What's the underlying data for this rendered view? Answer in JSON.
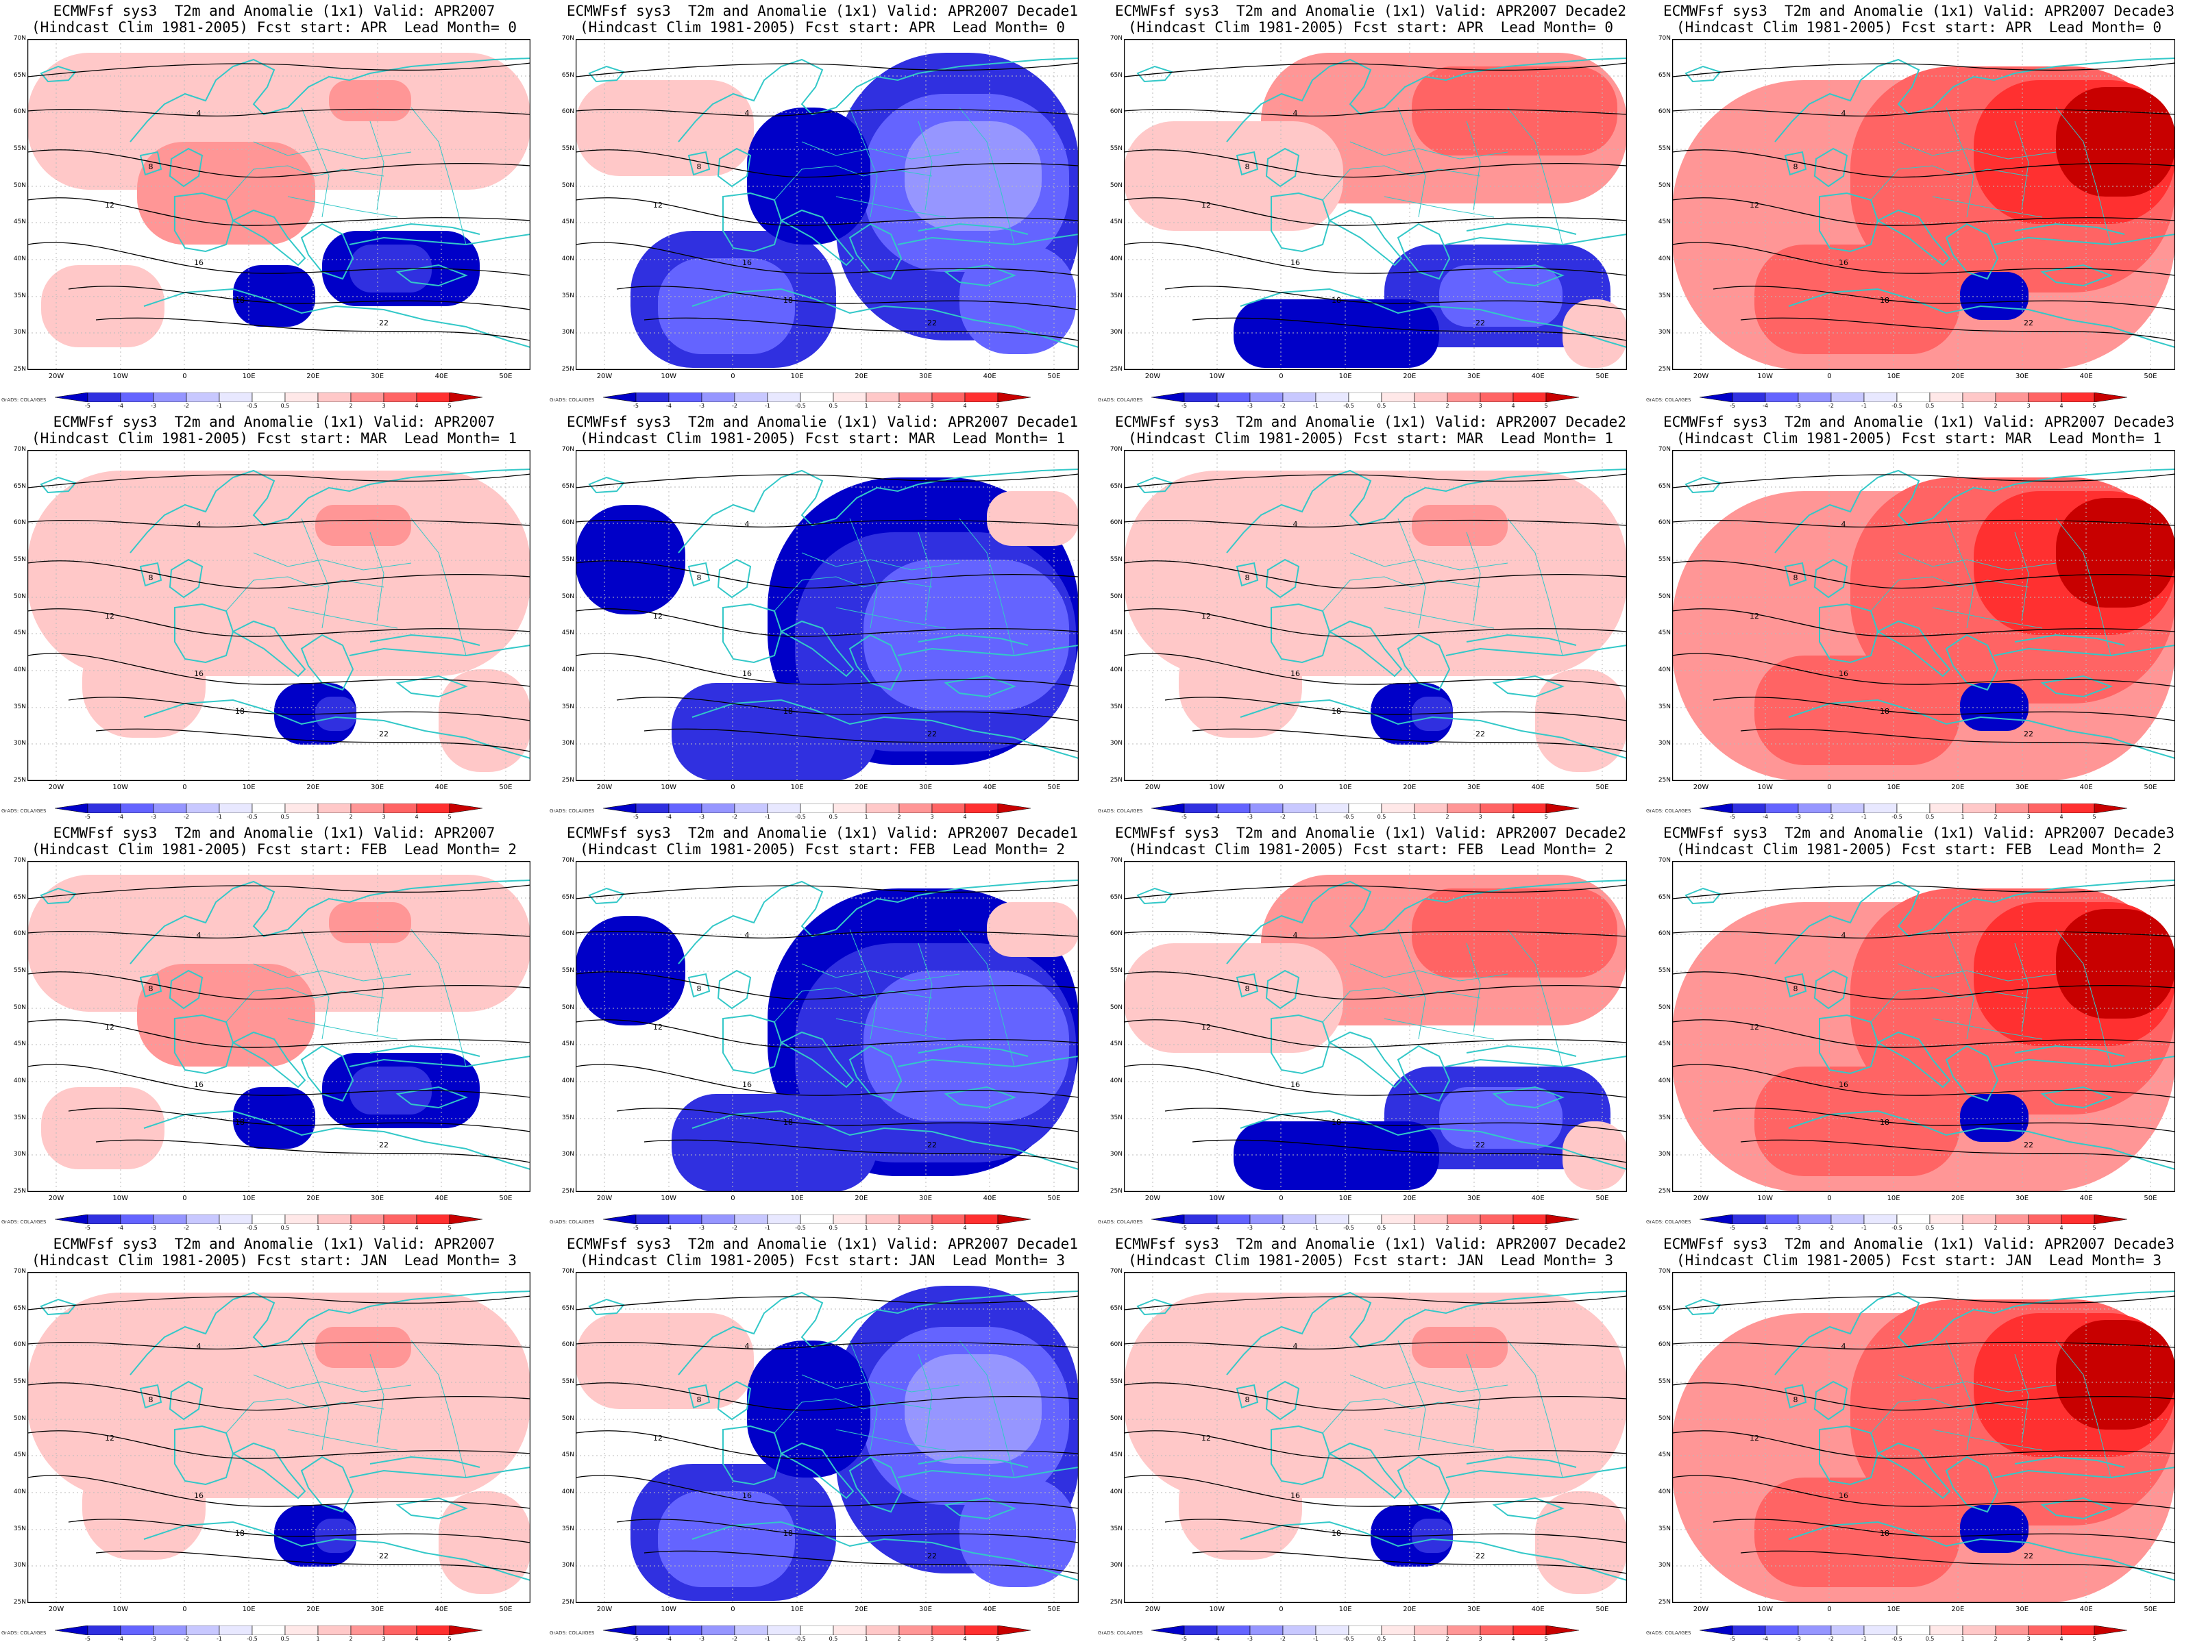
{
  "colors": {
    "coast": "#33c8c8",
    "contour": "#000000",
    "cold": [
      "#0000c8",
      "#3030e0",
      "#6464ff",
      "#9696ff",
      "#c8c8ff"
    ],
    "warm": [
      "#ffc8c8",
      "#ff9696",
      "#ff6464",
      "#ff3030",
      "#c80000"
    ]
  },
  "axes": {
    "lat_labels": [
      "70N",
      "65N",
      "60N",
      "55N",
      "50N",
      "45N",
      "40N",
      "35N",
      "30N",
      "25N"
    ],
    "lon_labels": [
      "20W",
      "10W",
      "0",
      "10E",
      "20E",
      "30E",
      "40E",
      "50E"
    ]
  },
  "colorbar": {
    "ticks": [
      "-5",
      "-4",
      "-3",
      "-2",
      "-1",
      "-0.5",
      "0.5",
      "1",
      "2",
      "3",
      "4",
      "5"
    ],
    "credit": "GrADS: COLA/IGES"
  },
  "contour_labels": [
    "4",
    "8",
    "12",
    "16",
    "18",
    "22"
  ],
  "panels": [
    {
      "t1": "ECMWFsf sys3  T2m and Anomalie (1x1) Valid: APR2007",
      "t2": "(Hindcast Clim 1981-2005) Fcst start: APR  Lead Month= 0",
      "pattern": "mixed_warm"
    },
    {
      "t1": "ECMWFsf sys3  T2m and Anomalie (1x1) Valid: APR2007 Decade1",
      "t2": "(Hindcast Clim 1981-2005) Fcst start: APR  Lead Month= 0",
      "pattern": "strong_cold"
    },
    {
      "t1": "ECMWFsf sys3  T2m and Anomalie (1x1) Valid: APR2007 Decade2",
      "t2": "(Hindcast Clim 1981-2005) Fcst start: APR  Lead Month= 0",
      "pattern": "warm_north_cold_south"
    },
    {
      "t1": "ECMWFsf sys3  T2m and Anomalie (1x1) Valid: APR2007 Decade3",
      "t2": "(Hindcast Clim 1981-2005) Fcst start: APR  Lead Month= 0",
      "pattern": "strong_warm"
    },
    {
      "t1": "ECMWFsf sys3  T2m and Anomalie (1x1) Valid: APR2007",
      "t2": "(Hindcast Clim 1981-2005) Fcst start: MAR  Lead Month= 1",
      "pattern": "light_warm"
    },
    {
      "t1": "ECMWFsf sys3  T2m and Anomalie (1x1) Valid: APR2007 Decade1",
      "t2": "(Hindcast Clim 1981-2005) Fcst start: MAR  Lead Month= 1",
      "pattern": "cold"
    },
    {
      "t1": "ECMWFsf sys3  T2m and Anomalie (1x1) Valid: APR2007 Decade2",
      "t2": "(Hindcast Clim 1981-2005) Fcst start: MAR  Lead Month= 1",
      "pattern": "light_warm"
    },
    {
      "t1": "ECMWFsf sys3  T2m and Anomalie (1x1) Valid: APR2007 Decade3",
      "t2": "(Hindcast Clim 1981-2005) Fcst start: MAR  Lead Month= 1",
      "pattern": "strong_warm"
    },
    {
      "t1": "ECMWFsf sys3  T2m and Anomalie (1x1) Valid: APR2007",
      "t2": "(Hindcast Clim 1981-2005) Fcst start: FEB  Lead Month= 2",
      "pattern": "mixed_warm"
    },
    {
      "t1": "ECMWFsf sys3  T2m and Anomalie (1x1) Valid: APR2007 Decade1",
      "t2": "(Hindcast Clim 1981-2005) Fcst start: FEB  Lead Month= 2",
      "pattern": "cold"
    },
    {
      "t1": "ECMWFsf sys3  T2m and Anomalie (1x1) Valid: APR2007 Decade2",
      "t2": "(Hindcast Clim 1981-2005) Fcst start: FEB  Lead Month= 2",
      "pattern": "warm_north_cold_south"
    },
    {
      "t1": "ECMWFsf sys3  T2m and Anomalie (1x1) Valid: APR2007 Decade3",
      "t2": "(Hindcast Clim 1981-2005) Fcst start: FEB  Lead Month= 2",
      "pattern": "strong_warm"
    },
    {
      "t1": "ECMWFsf sys3  T2m and Anomalie (1x1) Valid: APR2007",
      "t2": "(Hindcast Clim 1981-2005) Fcst start: JAN  Lead Month= 3",
      "pattern": "light_warm"
    },
    {
      "t1": "ECMWFsf sys3  T2m and Anomalie (1x1) Valid: APR2007 Decade1",
      "t2": "(Hindcast Clim 1981-2005) Fcst start: JAN  Lead Month= 3",
      "pattern": "strong_cold"
    },
    {
      "t1": "ECMWFsf sys3  T2m and Anomalie (1x1) Valid: APR2007 Decade2",
      "t2": "(Hindcast Clim 1981-2005) Fcst start: JAN  Lead Month= 3",
      "pattern": "light_warm"
    },
    {
      "t1": "ECMWFsf sys3  T2m and Anomalie (1x1) Valid: APR2007 Decade3",
      "t2": "(Hindcast Clim 1981-2005) Fcst start: JAN  Lead Month= 3",
      "pattern": "strong_warm"
    }
  ]
}
